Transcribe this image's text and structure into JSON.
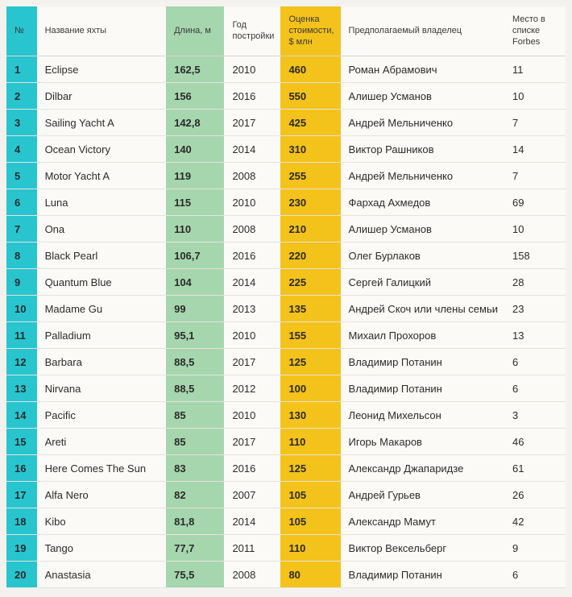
{
  "table": {
    "colors": {
      "teal": "#28c5cf",
      "green": "#a6d6ae",
      "yellow": "#f3c21b",
      "page_bg": "#f4f2ee",
      "row_border": "#e6e3dc"
    },
    "headers": {
      "num": "№",
      "name": "Название яхты",
      "length": "Длина, м",
      "year": "Год постройки",
      "cost": "Оценка стоимости, $ млн",
      "owner": "Предполагаемый владелец",
      "forbes": "Место в списке Forbes"
    },
    "rows": [
      {
        "num": "1",
        "name": "Eclipse",
        "length": "162,5",
        "year": "2010",
        "cost": "460",
        "owner": "Роман Абрамович",
        "forbes": "11"
      },
      {
        "num": "2",
        "name": "Dilbar",
        "length": "156",
        "year": "2016",
        "cost": "550",
        "owner": "Алишер Усманов",
        "forbes": "10"
      },
      {
        "num": "3",
        "name": "Sailing Yacht A",
        "length": "142,8",
        "year": "2017",
        "cost": "425",
        "owner": "Андрей Мельниченко",
        "forbes": "7"
      },
      {
        "num": "4",
        "name": "Ocean Victory",
        "length": "140",
        "year": "2014",
        "cost": "310",
        "owner": "Виктор Рашников",
        "forbes": "14"
      },
      {
        "num": "5",
        "name": "Motor Yacht A",
        "length": "119",
        "year": "2008",
        "cost": "255",
        "owner": "Андрей Мельниченко",
        "forbes": "7"
      },
      {
        "num": "6",
        "name": "Luna",
        "length": "115",
        "year": "2010",
        "cost": "230",
        "owner": "Фархад Ахмедов",
        "forbes": "69"
      },
      {
        "num": "7",
        "name": "Ona",
        "length": "110",
        "year": "2008",
        "cost": "210",
        "owner": "Алишер Усманов",
        "forbes": "10"
      },
      {
        "num": "8",
        "name": "Black Pearl",
        "length": "106,7",
        "year": "2016",
        "cost": "220",
        "owner": "Олег Бурлаков",
        "forbes": "158"
      },
      {
        "num": "9",
        "name": "Quantum Blue",
        "length": "104",
        "year": "2014",
        "cost": "225",
        "owner": "Сергей Галицкий",
        "forbes": "28"
      },
      {
        "num": "10",
        "name": "Madame Gu",
        "length": "99",
        "year": "2013",
        "cost": "135",
        "owner": "Андрей Скоч или члены семьи",
        "forbes": "23"
      },
      {
        "num": "11",
        "name": "Palladium",
        "length": "95,1",
        "year": "2010",
        "cost": "155",
        "owner": "Михаил Прохоров",
        "forbes": "13"
      },
      {
        "num": "12",
        "name": "Barbara",
        "length": "88,5",
        "year": "2017",
        "cost": "125",
        "owner": "Владимир Потанин",
        "forbes": "6"
      },
      {
        "num": "13",
        "name": "Nirvana",
        "length": "88,5",
        "year": "2012",
        "cost": "100",
        "owner": "Владимир Потанин",
        "forbes": "6"
      },
      {
        "num": "14",
        "name": "Pacific",
        "length": "85",
        "year": "2010",
        "cost": "130",
        "owner": "Леонид Михельсон",
        "forbes": "3"
      },
      {
        "num": "15",
        "name": "Areti",
        "length": "85",
        "year": "2017",
        "cost": "110",
        "owner": "Игорь Макаров",
        "forbes": "46"
      },
      {
        "num": "16",
        "name": "Here Comes The Sun",
        "length": "83",
        "year": "2016",
        "cost": "125",
        "owner": "Александр Джапаридзе",
        "forbes": "61"
      },
      {
        "num": "17",
        "name": "Alfa Nero",
        "length": "82",
        "year": "2007",
        "cost": "105",
        "owner": "Андрей Гурьев",
        "forbes": "26"
      },
      {
        "num": "18",
        "name": "Kibo",
        "length": "81,8",
        "year": "2014",
        "cost": "105",
        "owner": "Александр Мамут",
        "forbes": "42"
      },
      {
        "num": "19",
        "name": "Tango",
        "length": "77,7",
        "year": "2011",
        "cost": "110",
        "owner": "Виктор Вексельберг",
        "forbes": "9"
      },
      {
        "num": "20",
        "name": "Anastasia",
        "length": "75,5",
        "year": "2008",
        "cost": "80",
        "owner": "Владимир Потанин",
        "forbes": "6"
      }
    ]
  }
}
